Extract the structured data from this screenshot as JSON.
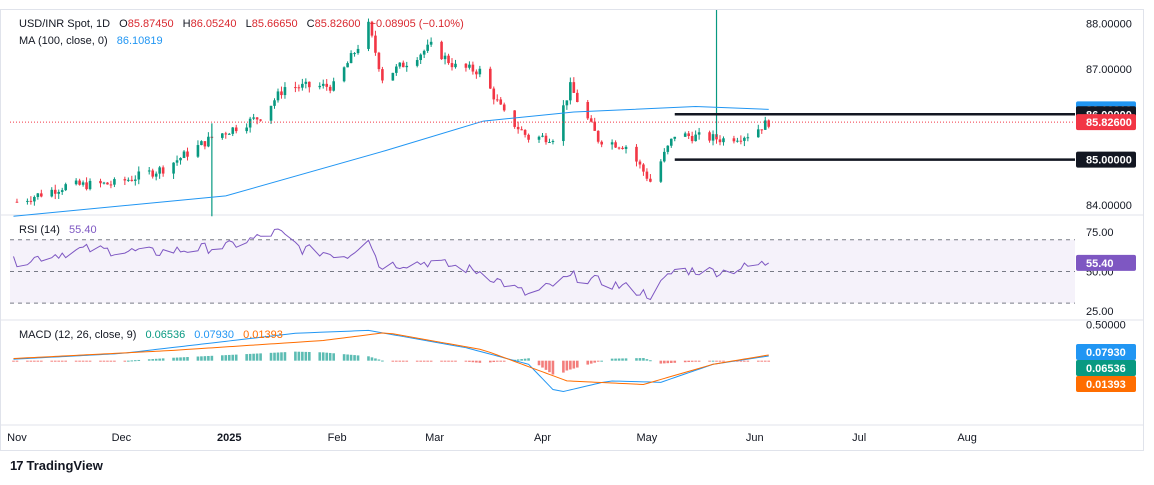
{
  "header": {
    "symbol": "USD/INR Spot, 1D",
    "o_label": "O",
    "o_value": "85.87450",
    "h_label": "H",
    "h_value": "86.05240",
    "l_label": "L",
    "l_value": "85.66650",
    "c_label": "C",
    "c_value": "85.82600",
    "change": "−0.08905 (−0.10%)"
  },
  "ma_legend": {
    "label": "MA (100, close, 0)",
    "value": "86.10819"
  },
  "rsi_legend": {
    "label": "RSI (14)",
    "value": "55.40"
  },
  "macd_legend": {
    "label": "MACD (12, 26, close, 9)",
    "v1": "0.06536",
    "v2": "0.07930",
    "v3": "0.01393"
  },
  "logo": {
    "text": "TradingView"
  },
  "colors": {
    "up": "#089981",
    "down": "#f23645",
    "ma": "#2196f3",
    "rsi": "#7e57c2",
    "macd": "#2196f3",
    "signal": "#ff6d00",
    "hist_up": "#26a69a",
    "hist_down": "#ef5350",
    "hline": "#131722"
  },
  "chart_data": [
    {
      "type": "candlestick",
      "title": "USD/INR Spot, 1D",
      "ylim": [
        83.8,
        88.3
      ],
      "yticks": [
        "88.00000",
        "87.00000",
        "84.00000"
      ],
      "xticks": [
        "Nov",
        "Dec",
        "2025",
        "Feb",
        "Mar",
        "Apr",
        "May",
        "Jun",
        "Jul",
        "Aug"
      ],
      "ohlc_path": [
        {
          "date": "2024-11-01",
          "close": 84.07
        },
        {
          "date": "2024-11-15",
          "close": 84.42
        },
        {
          "date": "2024-11-29",
          "close": 84.47
        },
        {
          "date": "2024-12-13",
          "close": 84.8
        },
        {
          "date": "2024-12-27",
          "close": 85.48
        },
        {
          "date": "2025-01-10",
          "close": 85.95
        },
        {
          "date": "2025-01-17",
          "close": 86.6
        },
        {
          "date": "2025-01-31",
          "close": 86.62
        },
        {
          "date": "2025-02-07",
          "close": 87.5
        },
        {
          "date": "2025-02-10",
          "close": 87.95
        },
        {
          "date": "2025-02-14",
          "close": 86.8
        },
        {
          "date": "2025-02-28",
          "close": 87.5
        },
        {
          "date": "2025-03-07",
          "close": 87.05
        },
        {
          "date": "2025-03-14",
          "close": 86.95
        },
        {
          "date": "2025-03-21",
          "close": 86.0
        },
        {
          "date": "2025-03-28",
          "close": 85.48
        },
        {
          "date": "2025-04-04",
          "close": 85.5
        },
        {
          "date": "2025-04-09",
          "close": 86.6
        },
        {
          "date": "2025-04-17",
          "close": 85.45
        },
        {
          "date": "2025-04-25",
          "close": 85.3
        },
        {
          "date": "2025-05-02",
          "close": 84.52
        },
        {
          "date": "2025-05-09",
          "close": 85.55
        },
        {
          "date": "2025-05-16",
          "close": 85.5
        },
        {
          "date": "2025-05-23",
          "close": 85.45
        },
        {
          "date": "2025-05-30",
          "close": 85.55
        },
        {
          "date": "2025-06-05",
          "close": 85.83
        }
      ],
      "spikes": [
        {
          "date": "2024-12-27",
          "high": 85.8,
          "low": 83.75
        },
        {
          "date": "2025-05-21",
          "high": 88.5,
          "low": 85.5
        }
      ],
      "series": [
        {
          "name": "MA (100, close, 0)",
          "last": 86.10819,
          "points": [
            {
              "date": "2024-10-31",
              "value": 83.75
            },
            {
              "date": "2024-12-31",
              "value": 84.2
            },
            {
              "date": "2025-02-15",
              "value": 85.2
            },
            {
              "date": "2025-03-15",
              "value": 85.85
            },
            {
              "date": "2025-04-10",
              "value": 86.05
            },
            {
              "date": "2025-05-15",
              "value": 86.17
            },
            {
              "date": "2025-06-05",
              "value": 86.108
            }
          ]
        }
      ],
      "horizontal_lines": [
        {
          "value": 86.0,
          "label": "86.00000",
          "from": "2025-05-09"
        },
        {
          "value": 85.0,
          "label": "85.00000",
          "from": "2025-05-09"
        }
      ],
      "last_price": {
        "value": 85.826,
        "label": "85.82600"
      },
      "ma_label": "86.10819"
    },
    {
      "type": "line",
      "title": "RSI (14)",
      "ylim": [
        20,
        85
      ],
      "yticks": [
        "75.00",
        "50.00",
        "25.00"
      ],
      "levels": [
        70,
        50,
        30
      ],
      "series": [
        {
          "name": "RSI (14)",
          "points": [
            {
              "date": "2024-10-31",
              "value": 56
            },
            {
              "date": "2024-11-20",
              "value": 64
            },
            {
              "date": "2024-12-10",
              "value": 62
            },
            {
              "date": "2025-01-01",
              "value": 66
            },
            {
              "date": "2025-01-15",
              "value": 75
            },
            {
              "date": "2025-01-22",
              "value": 64
            },
            {
              "date": "2025-02-04",
              "value": 60
            },
            {
              "date": "2025-02-10",
              "value": 72
            },
            {
              "date": "2025-02-13",
              "value": 54
            },
            {
              "date": "2025-02-28",
              "value": 56
            },
            {
              "date": "2025-03-14",
              "value": 50
            },
            {
              "date": "2025-03-28",
              "value": 35
            },
            {
              "date": "2025-04-10",
              "value": 47
            },
            {
              "date": "2025-04-25",
              "value": 40
            },
            {
              "date": "2025-05-02",
              "value": 35
            },
            {
              "date": "2025-05-09",
              "value": 51
            },
            {
              "date": "2025-05-23",
              "value": 50
            },
            {
              "date": "2025-06-05",
              "value": 55.4
            }
          ]
        }
      ],
      "last_label": "55.40"
    },
    {
      "type": "line",
      "title": "MACD (12, 26, close, 9)",
      "ylim": [
        -0.85,
        0.55
      ],
      "yticks": [
        "0.50000"
      ],
      "series": [
        {
          "name": "MACD",
          "points": [
            {
              "date": "2024-10-31",
              "value": 0.02
            },
            {
              "date": "2024-12-01",
              "value": 0.1
            },
            {
              "date": "2025-01-20",
              "value": 0.38
            },
            {
              "date": "2025-02-10",
              "value": 0.42
            },
            {
              "date": "2025-03-10",
              "value": 0.18
            },
            {
              "date": "2025-03-28",
              "value": -0.05
            },
            {
              "date": "2025-04-05",
              "value": -0.45
            },
            {
              "date": "2025-04-20",
              "value": -0.28
            },
            {
              "date": "2025-05-05",
              "value": -0.3
            },
            {
              "date": "2025-05-20",
              "value": -0.05
            },
            {
              "date": "2025-06-05",
              "value": 0.06536
            }
          ]
        },
        {
          "name": "Signal",
          "points": [
            {
              "date": "2024-10-31",
              "value": 0.03
            },
            {
              "date": "2024-12-15",
              "value": 0.14
            },
            {
              "date": "2025-01-28",
              "value": 0.28
            },
            {
              "date": "2025-02-15",
              "value": 0.39
            },
            {
              "date": "2025-03-15",
              "value": 0.15
            },
            {
              "date": "2025-04-08",
              "value": -0.28
            },
            {
              "date": "2025-04-30",
              "value": -0.33
            },
            {
              "date": "2025-05-20",
              "value": -0.05
            },
            {
              "date": "2025-06-05",
              "value": 0.0793
            }
          ]
        }
      ],
      "labels": [
        "0.07930",
        "0.06536",
        "0.01393"
      ]
    }
  ]
}
